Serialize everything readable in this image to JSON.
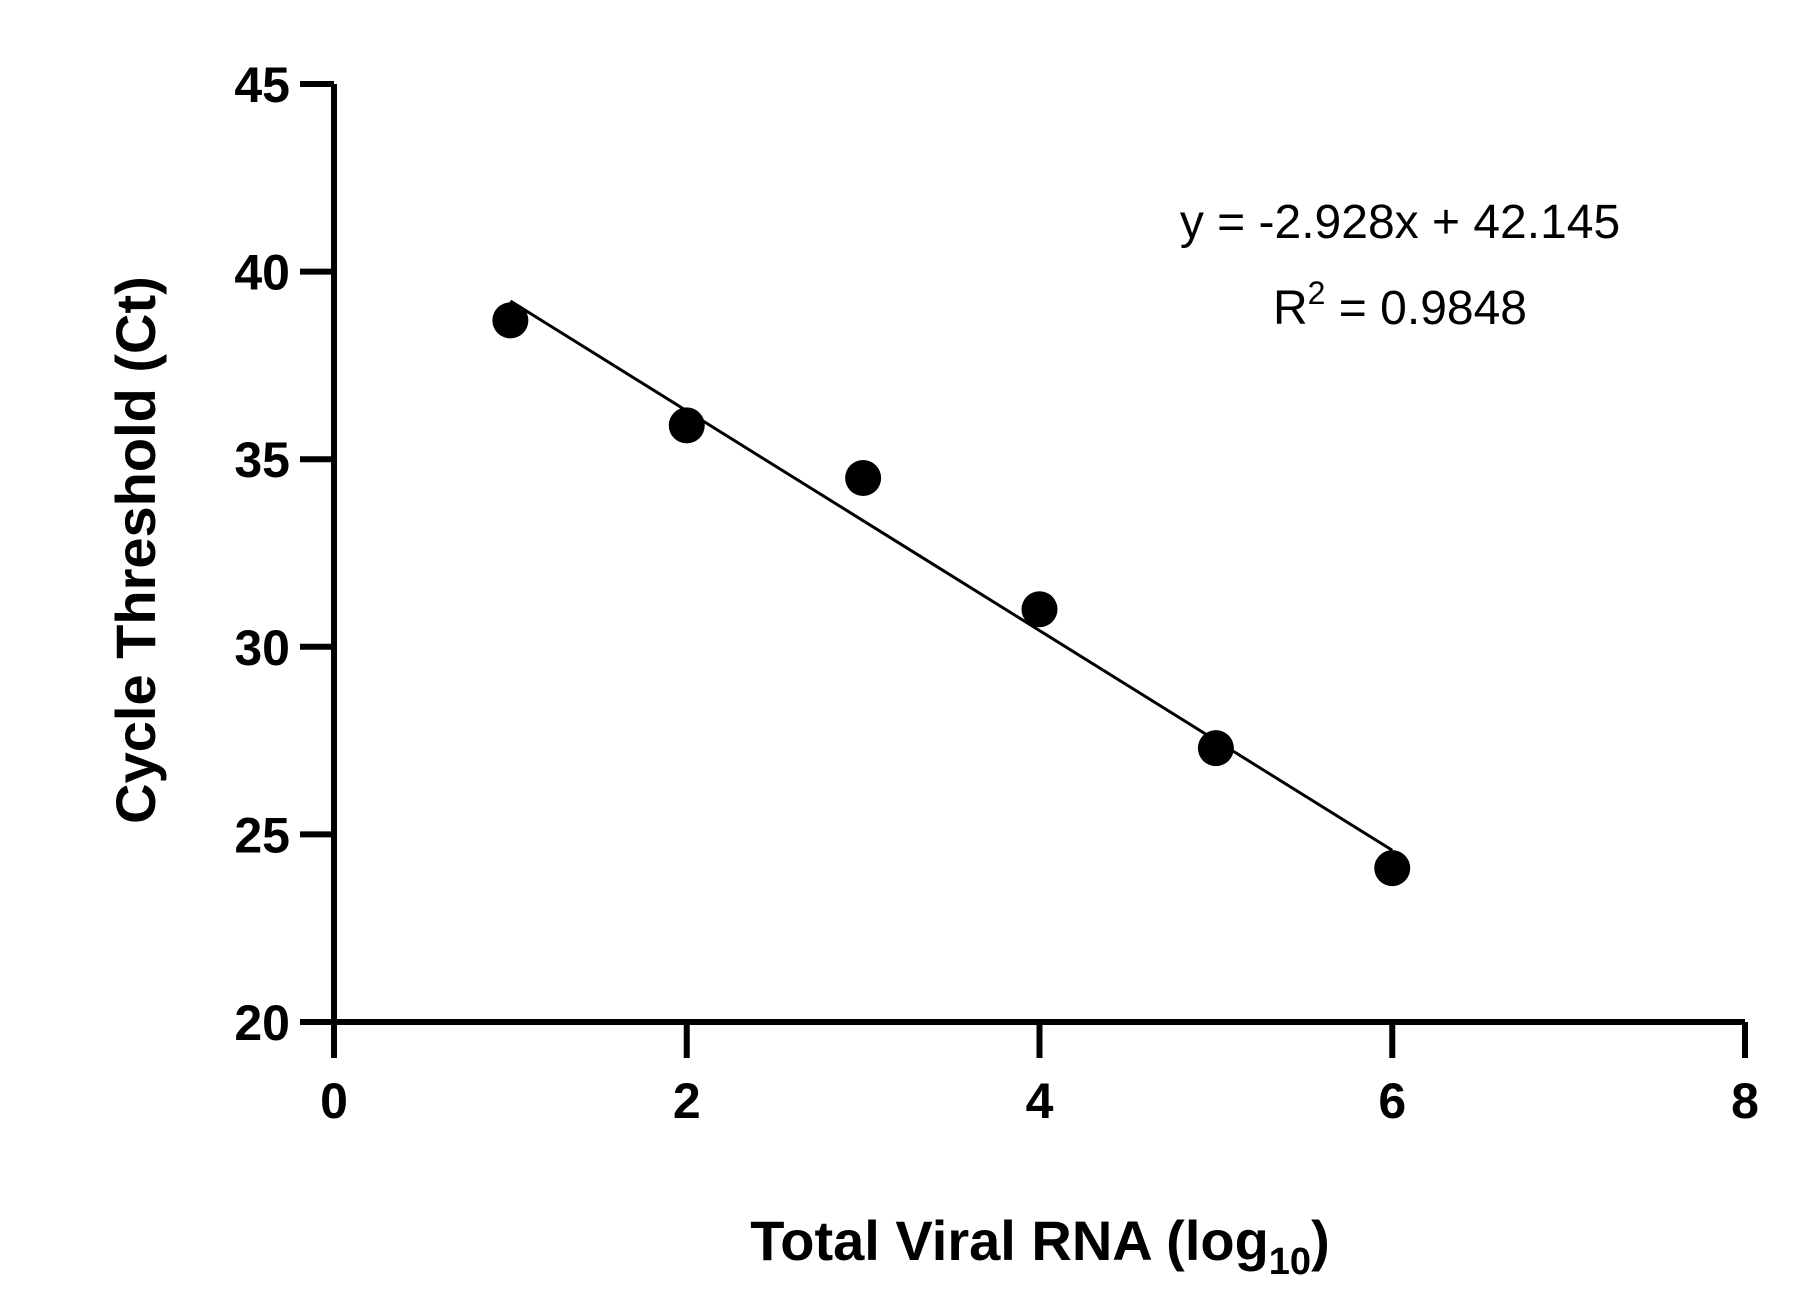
{
  "chart_data": {
    "type": "scatter",
    "xlabel": "Total Viral RNA (log",
    "xlabel_subscript": "10",
    "xlabel_suffix": ")",
    "ylabel": "Cycle Threshold (Ct)",
    "xlim": [
      0,
      8
    ],
    "ylim": [
      20,
      45
    ],
    "x_ticks": [
      0,
      2,
      4,
      6,
      8
    ],
    "y_ticks": [
      20,
      25,
      30,
      35,
      40,
      45
    ],
    "x_tick_labels": [
      "0",
      "2",
      "4",
      "6",
      "8"
    ],
    "y_tick_labels": [
      "20",
      "25",
      "30",
      "35",
      "40",
      "45"
    ],
    "grid": false,
    "legend": "none",
    "series": [
      {
        "x": [
          1,
          2,
          3,
          4,
          5,
          6
        ],
        "y": [
          38.7,
          35.9,
          34.5,
          31.0,
          27.3,
          24.1
        ],
        "color": "#000000",
        "marker": "circle"
      }
    ],
    "trendline": {
      "slope": -2.928,
      "intercept": 42.145,
      "x_range": [
        1,
        6
      ],
      "color": "#000000"
    },
    "annotation": {
      "equation": "y = -2.928x + 42.145",
      "r2_prefix": "R",
      "r2_superscript": "2",
      "r2_suffix": " = 0.9848"
    }
  }
}
